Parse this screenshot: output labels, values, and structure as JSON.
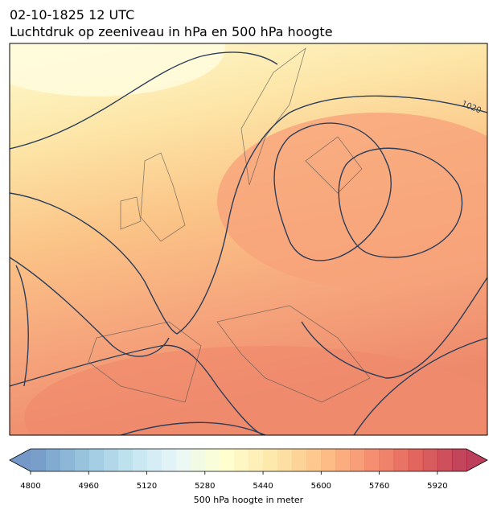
{
  "header": {
    "title": "02-10-1825 12 UTC",
    "subtitle": "Luchtdruk op zeeniveau in hPa en 500 hPa hoogte"
  },
  "map": {
    "contour_label": 1020
  },
  "colorbar": {
    "lim": [
      4800,
      6000
    ],
    "ticks": [
      4800,
      4960,
      5120,
      5280,
      5440,
      5600,
      5760,
      5920
    ],
    "label": "500 hPa hoogte in meter"
  }
}
